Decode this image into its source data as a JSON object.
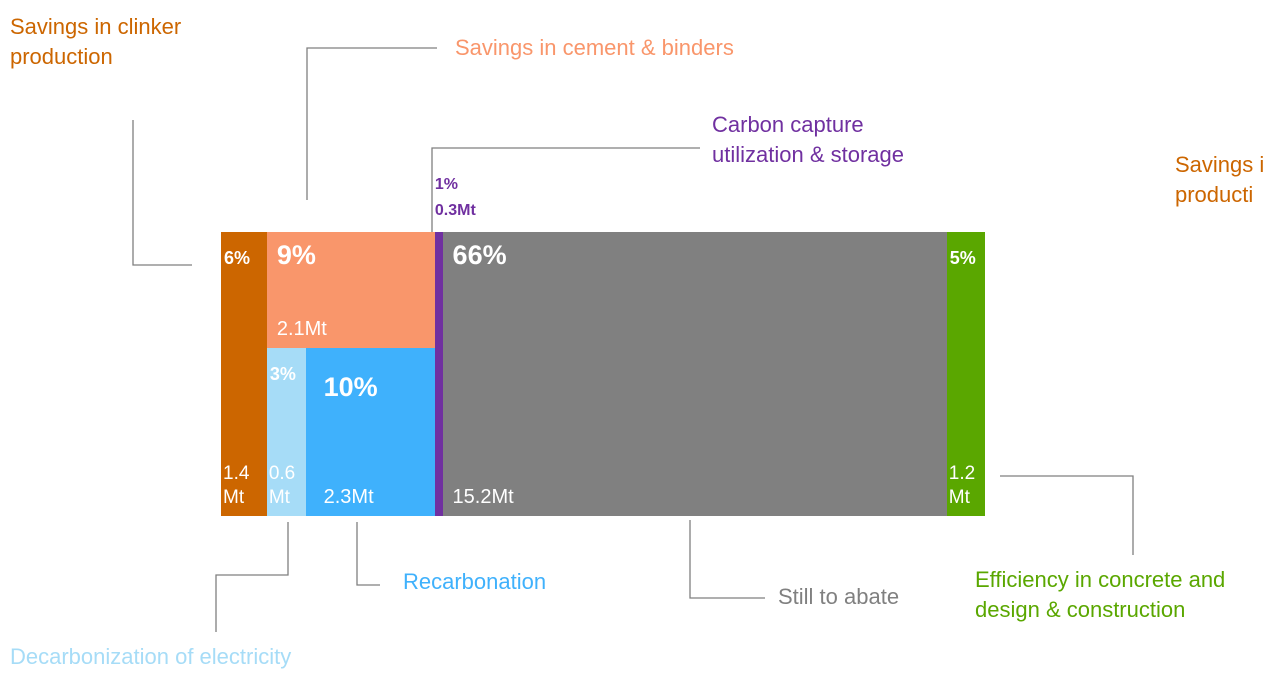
{
  "chart_data": {
    "type": "mosaic",
    "series": [
      {
        "name": "Savings in clinker\nproduction",
        "color": "#cc6600"
      },
      {
        "name": "Savings in cement & binders",
        "color": "#f9966b"
      },
      {
        "name": "Decarbonization of electricity",
        "color": "#a6dcf7"
      },
      {
        "name": "Recarbonation",
        "color": "#3fb1fc"
      },
      {
        "name": "Carbon capture\nutilization & storage",
        "color": "#7030a0"
      },
      {
        "name": "Still to abate",
        "color": "#808080"
      },
      {
        "name": "Efficiency in concrete and\ndesign & construction",
        "color": "#5aa700"
      }
    ],
    "values": [
      6,
      9,
      3,
      10,
      1,
      66,
      5
    ],
    "value_labels": [
      "6%",
      "9%",
      "3%",
      "10%",
      "1%",
      "66%",
      "5%"
    ],
    "masses": [
      1.4,
      2.1,
      0.6,
      2.3,
      0.3,
      15.2,
      1.2
    ],
    "mass_labels": [
      "1.4\nMt",
      "2.1Mt",
      "0.6\nMt",
      "2.3Mt",
      "0.3Mt",
      "15.2Mt",
      "1.2\nMt"
    ],
    "cropped_label": {
      "text": "Savings i\nproducti",
      "color": "#cc6600"
    }
  }
}
